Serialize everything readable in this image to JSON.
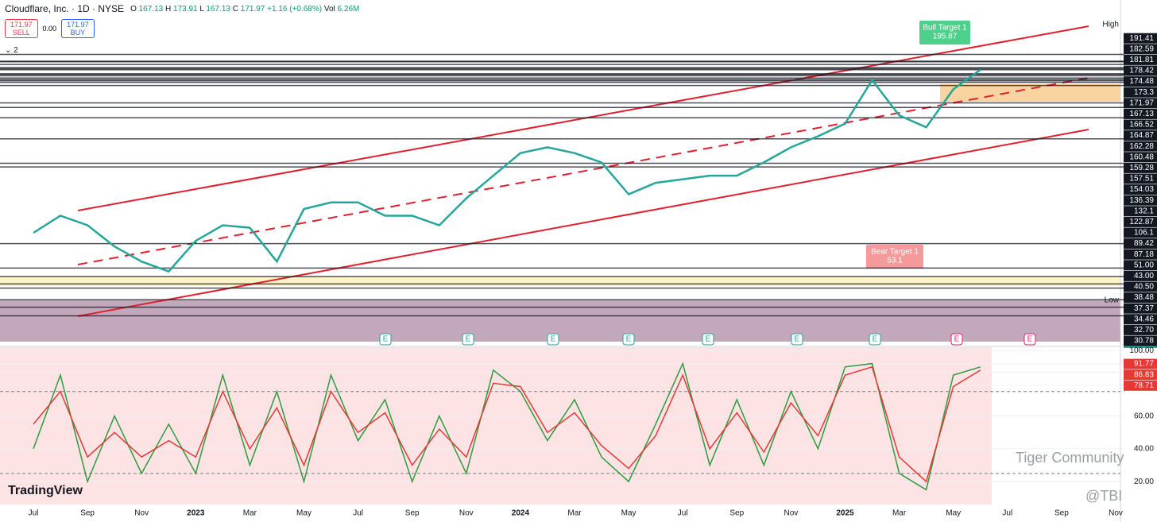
{
  "header": {
    "symbol": "Cloudflare, Inc. · 1D · NYSE",
    "ohlc": [
      {
        "label": "O",
        "value": "167.13"
      },
      {
        "label": "H",
        "value": "173.91"
      },
      {
        "label": "L",
        "value": "167.13"
      },
      {
        "label": "C",
        "value": "171.97"
      }
    ],
    "change": "+1.16 (+0.68%)",
    "volume": {
      "label": "Vol",
      "value": "6.26M"
    },
    "sell_price": "171.97",
    "sell_label": "SELL",
    "spread": "0.00",
    "buy_price": "171.97",
    "buy_label": "BUY",
    "indicator_count": "2"
  },
  "annotations": {
    "bull_target": {
      "title": "Bull Target 1",
      "value": "195.87"
    },
    "bear_target": {
      "title": "Bear Target 1",
      "value": "53.1"
    },
    "high_label": "High",
    "low_label": "Low",
    "volume_tag": "6.26M",
    "earnings_marker": "E"
  },
  "watermarks": {
    "brand": "TradingView",
    "community": "Tiger Community",
    "handle": "@TBI"
  },
  "chart_data": [
    {
      "type": "line",
      "color": "#26a69a",
      "log_scale": true,
      "ylim": [
        25,
        280
      ],
      "categories": [
        "Jul",
        null,
        "Sep",
        null,
        "Nov",
        null,
        "2023",
        null,
        "Mar",
        null,
        "May",
        null,
        "Jul",
        null,
        "Sep",
        null,
        "Nov",
        null,
        "2024",
        null,
        "Mar",
        null,
        "May",
        null,
        "Jul",
        null,
        "Sep",
        null,
        "Nov",
        null,
        "2025",
        null,
        "Mar",
        null,
        "May",
        null,
        "Jul",
        null,
        "Sep",
        null,
        "Nov"
      ],
      "values": [
        55,
        62,
        58,
        50,
        45,
        42,
        52,
        58,
        57,
        45,
        65,
        68,
        68,
        62,
        62,
        58,
        70,
        82,
        96,
        100,
        96,
        90,
        72,
        78,
        80,
        82,
        82,
        90,
        100,
        108,
        118,
        160,
        125,
        115,
        150,
        172,
        null,
        null,
        null,
        null,
        null
      ],
      "yticks": [
        191.41,
        182.59,
        181.81,
        178.42,
        174.48,
        173.3,
        171.97,
        167.13,
        166.52,
        164.87,
        162.28,
        160.48,
        159.28,
        157.51,
        154.03,
        136.39,
        132.1,
        122.87,
        106.1,
        89.42,
        87.18,
        {
          "value": 51,
          "label": "51.00"
        },
        {
          "value": 43,
          "label": "43.00"
        },
        {
          "value": 40.5,
          "label": "40.50"
        },
        38.48,
        37.37,
        34.46,
        {
          "value": 32.7,
          "label": "32.70"
        },
        30.78
      ]
    },
    {
      "type": "line",
      "ylim": [
        6,
        102
      ],
      "series": [
        {
          "color": "#2e9b3e",
          "values": [
            40,
            85,
            20,
            60,
            25,
            55,
            25,
            85,
            30,
            75,
            20,
            85,
            45,
            70,
            20,
            60,
            25,
            88,
            75,
            45,
            70,
            35,
            20,
            55,
            92,
            30,
            70,
            30,
            75,
            40,
            90,
            92,
            25,
            15,
            85,
            90,
            null,
            null,
            null,
            null,
            null
          ]
        },
        {
          "color": "#e53935",
          "values": [
            55,
            75,
            35,
            50,
            35,
            45,
            35,
            75,
            40,
            65,
            30,
            75,
            50,
            62,
            30,
            52,
            35,
            80,
            78,
            50,
            62,
            42,
            28,
            48,
            85,
            40,
            62,
            38,
            68,
            48,
            85,
            90,
            35,
            20,
            78,
            88,
            null,
            null,
            null,
            null,
            null
          ]
        }
      ],
      "yticks": [
        {
          "value": 100,
          "label": "100.00"
        },
        91.77,
        86.83,
        78.71,
        {
          "value": 60,
          "label": "60.00"
        },
        {
          "value": 40,
          "label": "40.00"
        },
        {
          "value": 20,
          "label": "20.00"
        }
      ],
      "hlines": [
        75,
        25
      ]
    }
  ]
}
